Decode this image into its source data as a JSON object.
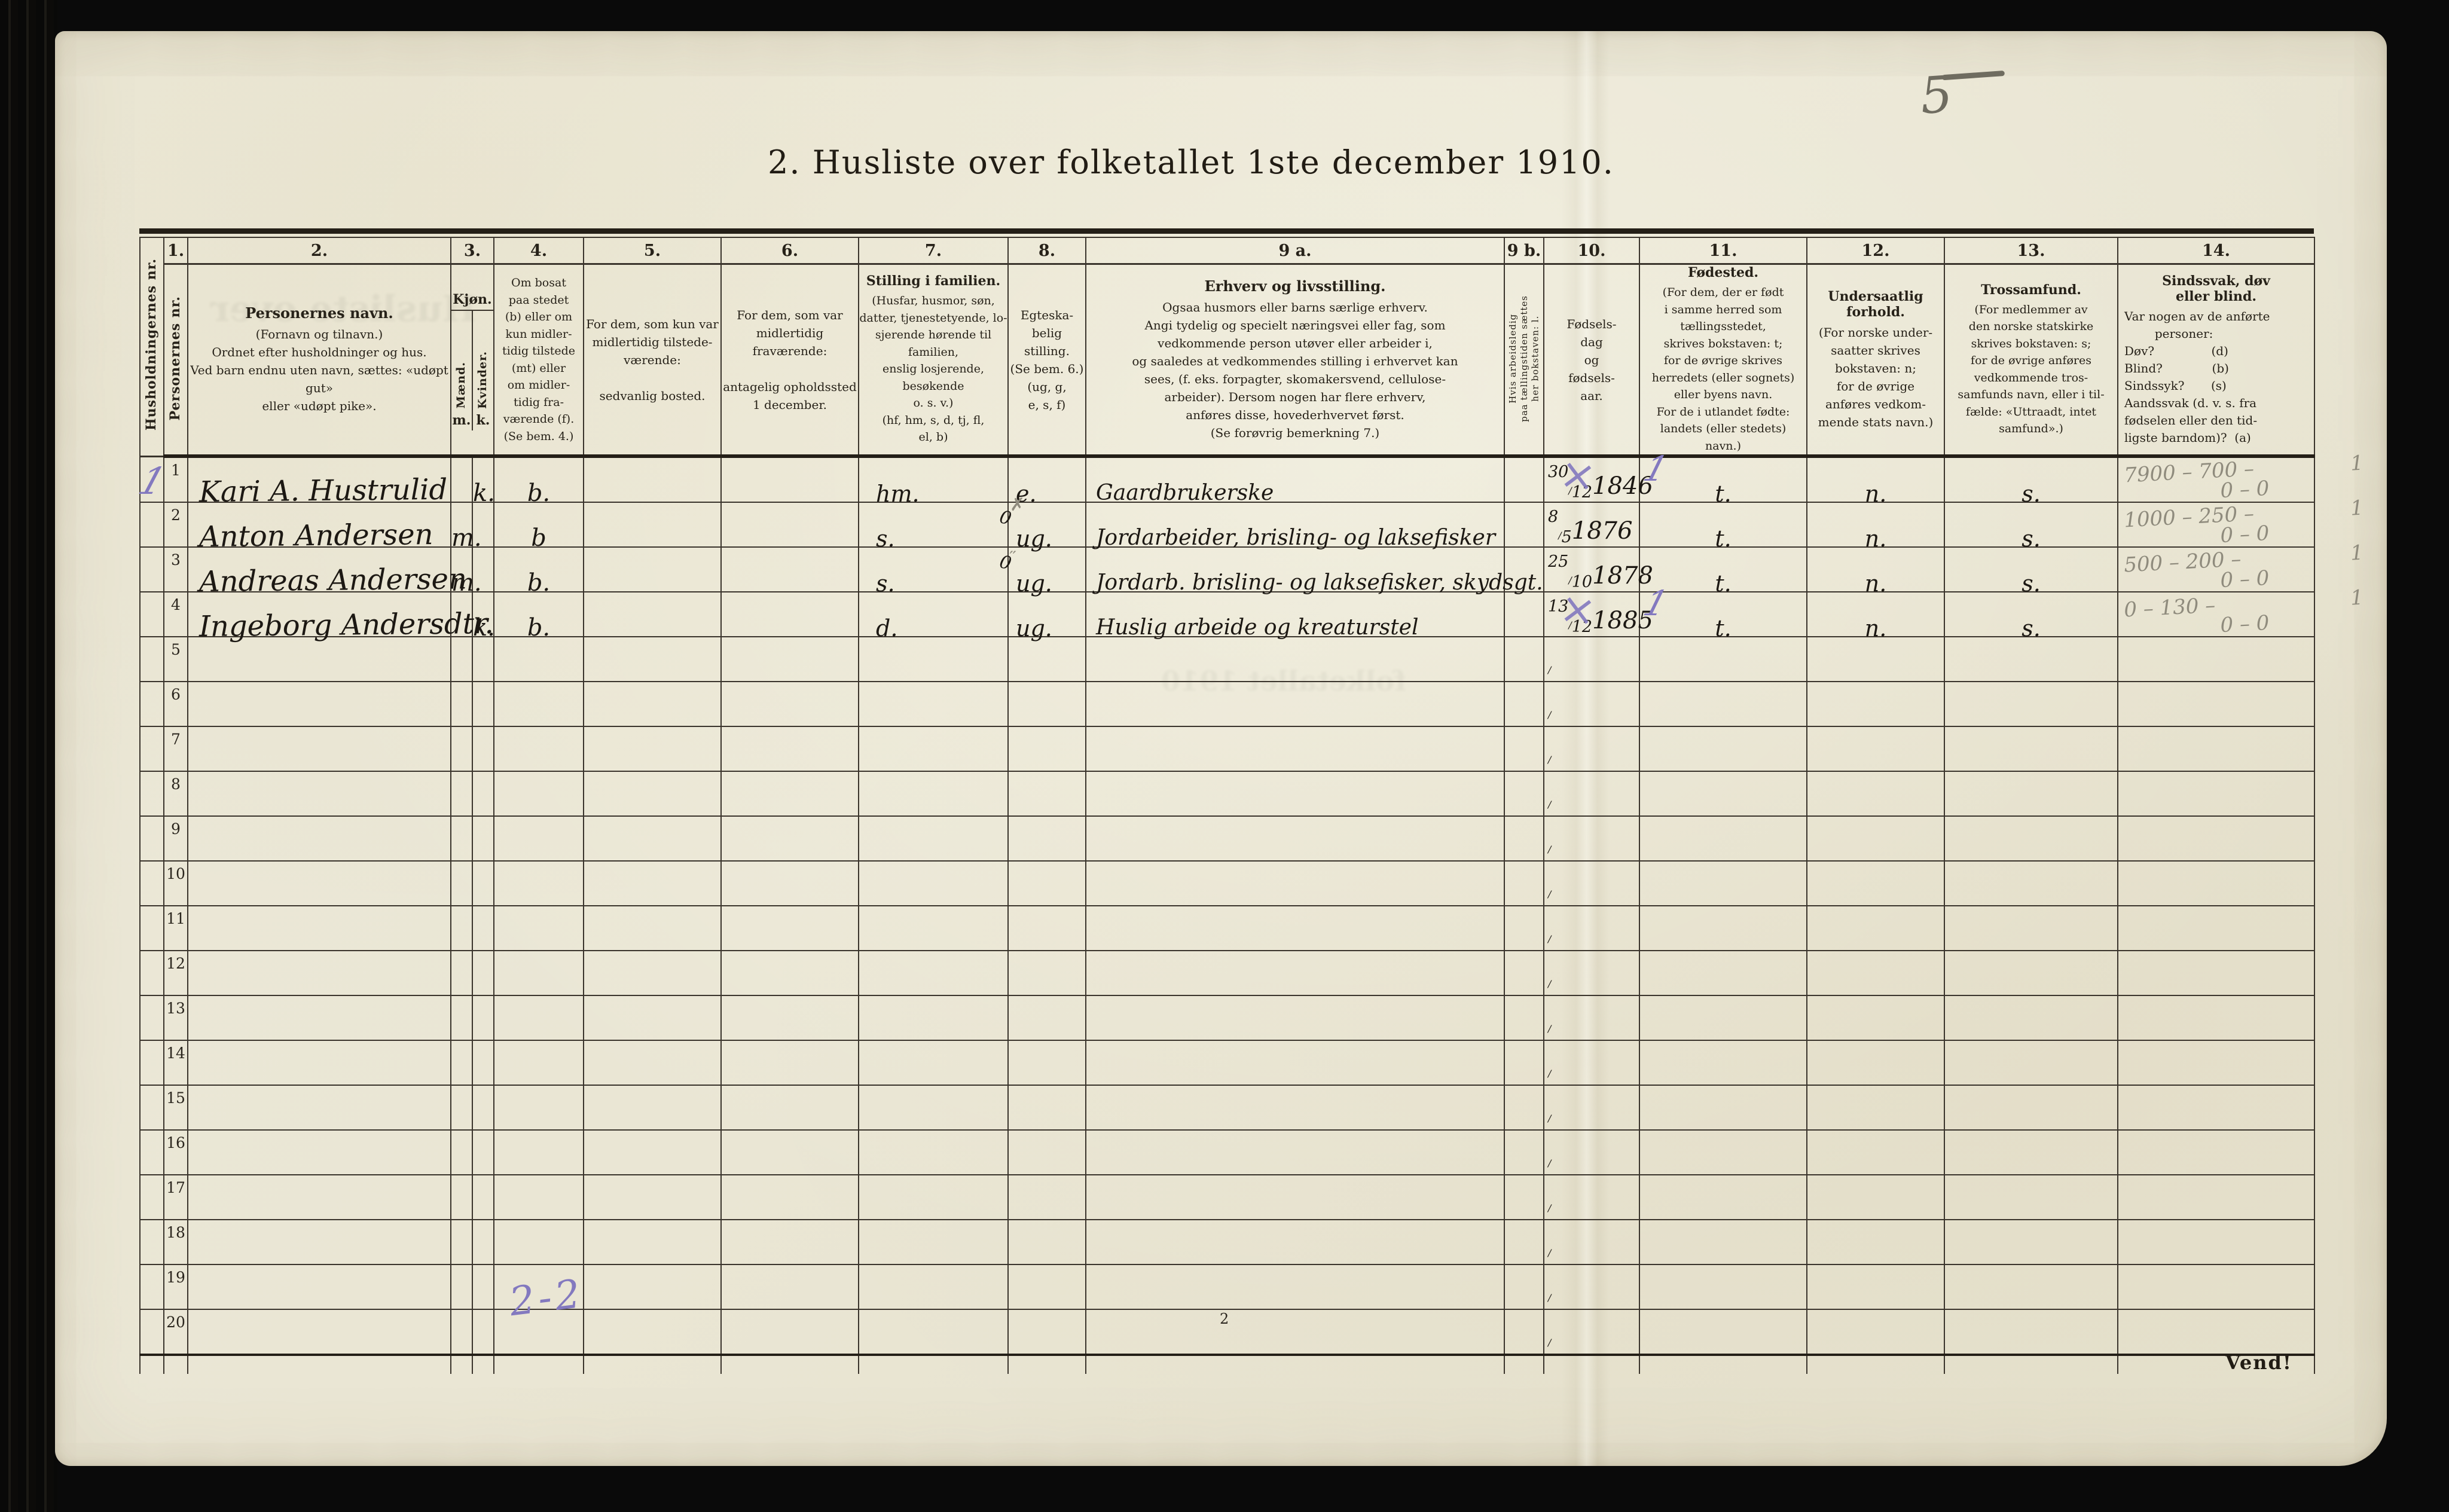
{
  "page": {
    "title": "2. Husliste over folketallet 1ste december 1910.",
    "page_number": "2",
    "turn_note": "Vend!",
    "corner_pencil_mark": "5",
    "bottom_tally_ink": "2-2",
    "ghost_text1": "Husliste over",
    "ghost_text2": "folketallet 1910",
    "ink_color": "#1c1813",
    "purple_ink_color": "#8379bf",
    "pencil_color": "#8f8b7d",
    "paper_color": "#eae6d4"
  },
  "header": {
    "hush_vertical": "Husholdningernes nr.",
    "pers_number": "1.",
    "pers_vertical": "Personernes nr.",
    "name_number": "2.",
    "name_title": "Personernes navn.",
    "name_rest": "(Fornavn og tilnavn.)\nOrdnet efter husholdninger og hus.\nVed barn endnu uten navn, sættes: «udøpt gut»\neller «udøpt pike».",
    "kjon_number": "3.",
    "kjon_label": "Kjøn.",
    "kjon_male_vertical": "Mænd.",
    "kjon_female_vertical": "Kvinder.",
    "kjon_male_abbr": "m.",
    "kjon_female_abbr": "k.",
    "bosat_number": "4.",
    "bosat_text": "Om bosat\npaa stedet\n(b) eller om\nkun midler-\ntidig tilstede\n(mt) eller\nom midler-\ntidig fra-\nværende (f).\n(Se bem. 4.)",
    "c5_number": "5.",
    "c5_text": "For dem, som kun var\nmidlertidig tilstede-\nværende:\n\nsedvanlig bosted.",
    "c6_number": "6.",
    "c6_text": "For dem, som var\nmidlertidig\nfraværende:\n\nantagelig opholdssted\n1 december.",
    "c7_number": "7.",
    "c7_title": "Stilling i familien.",
    "c7_text": "(Husfar, husmor, søn,\ndatter, tjenestetyende, lo-\nsjerende hørende til familien,\nenslig losjerende, besøkende\no. s. v.)\n(hf, hm, s, d, tj, fl,\nel, b)",
    "c8_number": "8.",
    "c8_text": "Egteska-\nbelig\nstilling.\n(Se bem. 6.)\n(ug, g,\ne, s, f)",
    "c9a_number": "9 a.",
    "c9a_title": "Erhverv og livsstilling.",
    "c9a_text": "Ogsaa husmors eller barns særlige erhverv.\nAngi tydelig og specielt næringsvei eller fag, som\nvedkommende person utøver eller arbeider i,\nog saaledes at vedkommendes stilling i erhvervet kan\nsees, (f. eks. forpagter, skomakersvend, cellulose-\narbeider).  Dersom nogen har flere erhverv,\nanføres disse, hovederhvervet først.\n(Se forøvrig bemerkning 7.)",
    "c9b_number": "9 b.",
    "c9b_vertical": "Hvis arbeidsledig\npaa tællingstiden sættes\nher bokstaven: l.",
    "c10_number": "10.",
    "c10_text": "Fødsels-\ndag\nog\nfødsels-\naar.",
    "c11_number": "11.",
    "c11_title": "Fødested.",
    "c11_text": "(For dem, der er født\ni samme herred som\ntællingsstedet,\nskrives bokstaven: t;\nfor de øvrige skrives\nherredets (eller sognets)\neller byens navn.\nFor de i utlandet fødte:\nlandets (eller stedets)\nnavn.)",
    "c12_number": "12.",
    "c12_title": "Undersaatlig\nforhold.",
    "c12_text": "(For norske under-\nsaatter skrives\nbokstaven: n;\nfor de øvrige\nanføres vedkom-\nmende stats navn.)",
    "c13_number": "13.",
    "c13_title": "Trossamfund.",
    "c13_text": "(For medlemmer av\nden norske statskirke\nskrives bokstaven: s;\nfor de øvrige anføres\nvedkommende tros-\nsamfunds navn, eller i til-\nfælde: «Uttraadt, intet\nsamfund».)",
    "c14_number": "14.",
    "c14_title": "Sindssvak, døv\neller blind.",
    "c14_text": "Var nogen av de anførte\n        personer:\nDøv?               (d)\nBlind?             (b)\nSindssyk?       (s)\nAandssvak (d. v. s. fra\nfødselen eller den tid-\nligste barndom)?  (a)"
  },
  "rows": [
    {
      "hush": "1",
      "nr": "1",
      "name": "Kari A. Hustrulid",
      "k": "k.",
      "bosat": "b.",
      "stilling": "hm.",
      "egtestand": "e.",
      "erhverv": "Gaardbrukerske",
      "fdag": "30",
      "fmnd": "12",
      "faar": "1846",
      "date_cross": "×",
      "fodested_mark": "1",
      "fodested": "t.",
      "undersaat": "n.",
      "tros": "s.",
      "pencil1": "7900 – 700 –",
      "pencil_tail": "1",
      "pencil2": "0 – 0"
    },
    {
      "nr": "2",
      "name": "Anton Andersen",
      "m": "m.",
      "bosat": "b",
      "stilling": "s.",
      "stilling_mark": "0",
      "egtestand": "ug.",
      "egtestand_mark": "✗",
      "erhverv": "Jordarbeider, brisling- og laksefisker",
      "fdag": "8",
      "fmnd": "5",
      "faar": "1876",
      "fodested": "t.",
      "undersaat": "n.",
      "tros": "s.",
      "pencil1": "1000 – 250 –",
      "pencil_tail": "1",
      "pencil2": "0 – 0"
    },
    {
      "nr": "3",
      "name": "Andreas Andersen",
      "m": "m.",
      "bosat": "b.",
      "stilling": "s.",
      "stilling_mark": "0",
      "egtestand": "ug.",
      "egtestand_mark": "˶",
      "erhverv": "Jordarb. brisling- og laksefisker, skydsgt.",
      "fdag": "25",
      "fmnd": "10",
      "faar": "1878",
      "fodested": "t.",
      "undersaat": "n.",
      "tros": "s.",
      "pencil1": "500 – 200 –",
      "pencil_tail": "1",
      "pencil2": "0 – 0"
    },
    {
      "nr": "4",
      "name": "Ingeborg Andersdtr.",
      "k": "k.",
      "bosat": "b.",
      "stilling": "d.",
      "egtestand": "ug.",
      "erhverv": "Huslig arbeide og kreaturstel",
      "fdag": "13",
      "fmnd": "12",
      "faar": "1885",
      "date_cross": "×",
      "fodested_mark": "1",
      "fodested": "t.",
      "undersaat": "n.",
      "tros": "s.",
      "pencil1": "0 – 130 –",
      "pencil_tail": "1",
      "pencil2": "0 – 0"
    },
    {
      "nr": "5"
    },
    {
      "nr": "6"
    },
    {
      "nr": "7"
    },
    {
      "nr": "8"
    },
    {
      "nr": "9"
    },
    {
      "nr": "10"
    },
    {
      "nr": "11"
    },
    {
      "nr": "12"
    },
    {
      "nr": "13"
    },
    {
      "nr": "14"
    },
    {
      "nr": "15"
    },
    {
      "nr": "16"
    },
    {
      "nr": "17"
    },
    {
      "nr": "18"
    },
    {
      "nr": "19"
    },
    {
      "nr": "20"
    }
  ]
}
